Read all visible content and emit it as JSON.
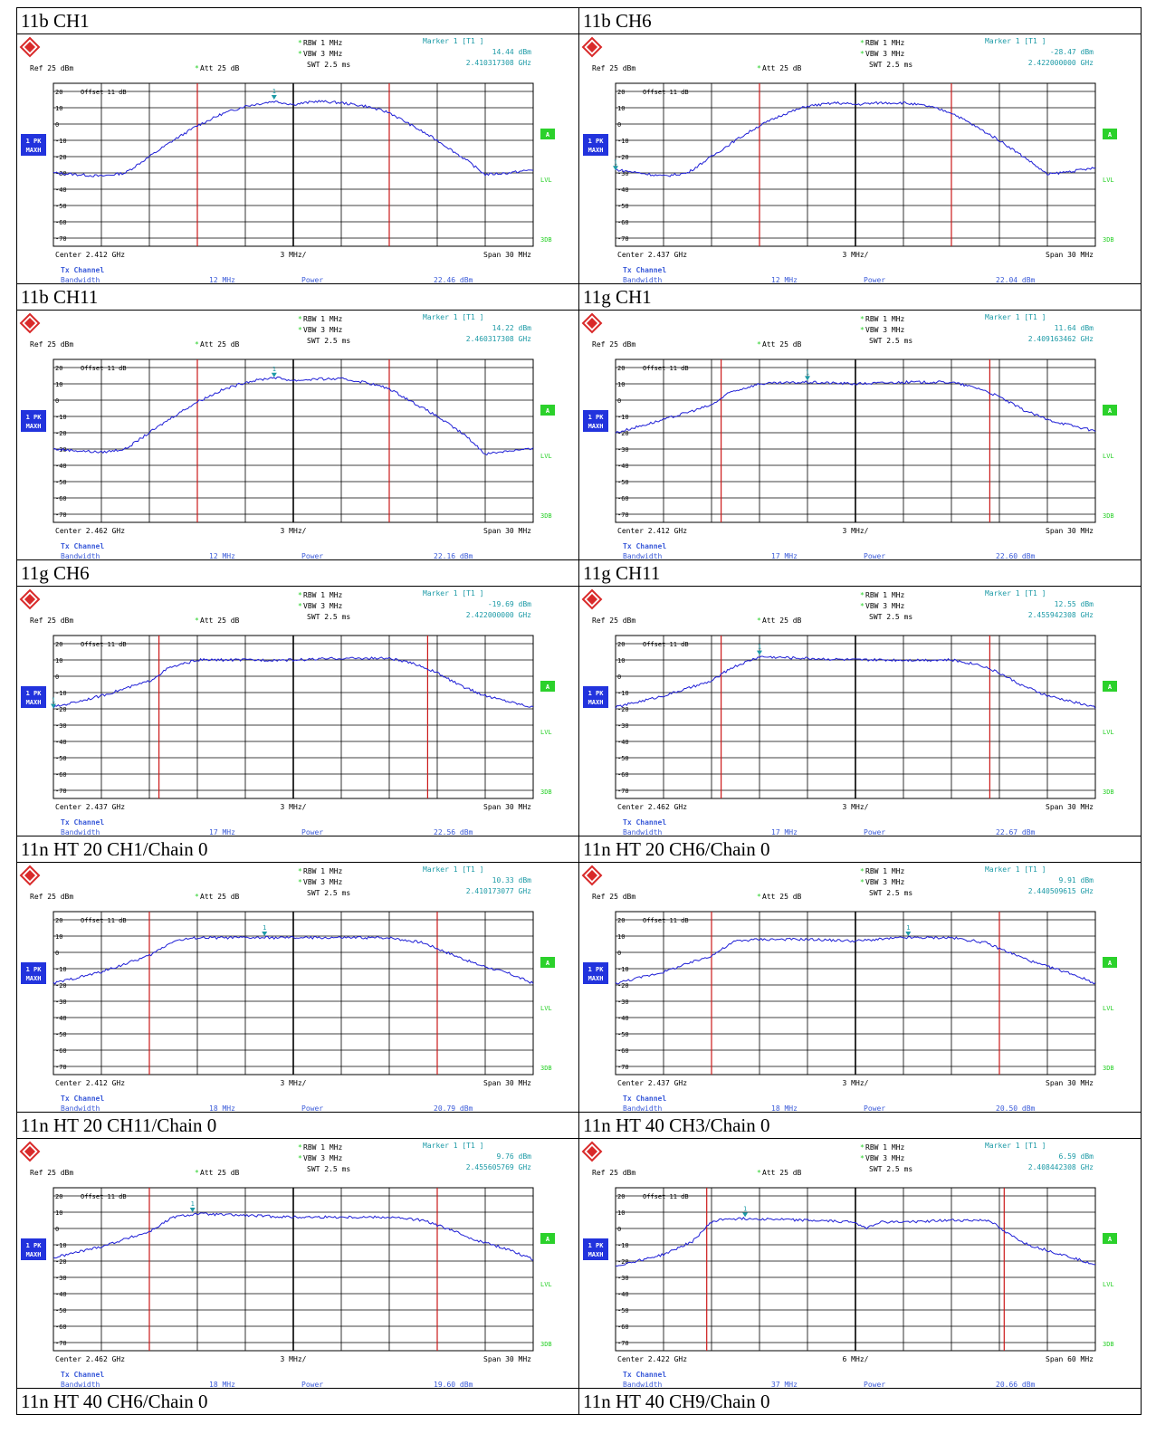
{
  "common": {
    "ref": "Ref  25 dBm",
    "att": "Att  25 dB",
    "star": "*",
    "rbw": "RBW 1 MHz",
    "vbw": "VBW 3 MHz",
    "swt": "SWT 2.5 ms",
    "marker_label": "Marker 1 [T1 ]",
    "marker_num": "1",
    "offset": "Offset  11 dB",
    "trace_l1": "1 PK",
    "trace_l2": "MAXH",
    "side_a": "A",
    "side_lvl": "LVL",
    "side_3db": "3DB",
    "tx_channel": "Tx Channel",
    "bandwidth_label": "Bandwidth",
    "power_label": "Power",
    "colors": {
      "trace": "#1f1fd6",
      "channel_line": "#cc1a1a",
      "marker": "#1c9aa6",
      "text_blue": "#3b5bd9",
      "side_green": "#2bd12b",
      "label_bg": "#2233dd"
    }
  },
  "chart_data": [
    {
      "title": "11b CH1",
      "type": "line",
      "center": "Center 2.412 GHz",
      "div": "3 MHz/",
      "span": "Span 30 MHz",
      "marker_value": "14.44 dBm",
      "marker_freq": "2.410317308 GHz",
      "bandwidth": "12 MHz",
      "power": "22.46 dBm",
      "yticks": [
        20,
        10,
        0,
        -10,
        -20,
        -30,
        -40,
        -50,
        -60,
        -70
      ],
      "ylim": [
        -75,
        25
      ],
      "xlim": [
        0,
        10
      ],
      "channel_lines": [
        3.0,
        7.0
      ],
      "marker_x": 4.6,
      "marker_y": 15,
      "series": [
        {
          "values": [
            [
              0,
              -30
            ],
            [
              1,
              -32
            ],
            [
              1.5,
              -30
            ],
            [
              2,
              -20
            ],
            [
              2.5,
              -10
            ],
            [
              3,
              -1
            ],
            [
              3.5,
              6
            ],
            [
              4,
              11
            ],
            [
              4.6,
              14
            ],
            [
              5,
              12
            ],
            [
              5.5,
              14
            ],
            [
              6,
              13
            ],
            [
              6.5,
              11
            ],
            [
              7,
              7
            ],
            [
              7.3,
              2
            ],
            [
              8,
              -10
            ],
            [
              8.6,
              -22
            ],
            [
              9,
              -31
            ],
            [
              9.5,
              -30
            ],
            [
              10,
              -28
            ]
          ]
        }
      ]
    },
    {
      "title": "11b CH6",
      "type": "line",
      "center": "Center 2.437 GHz",
      "div": "3 MHz/",
      "span": "Span 30 MHz",
      "marker_value": "-28.47 dBm",
      "marker_freq": "2.422000000 GHz",
      "bandwidth": "12 MHz",
      "power": "22.04 dBm",
      "yticks": [
        20,
        10,
        0,
        -10,
        -20,
        -30,
        -40,
        -50,
        -60,
        -70
      ],
      "ylim": [
        -75,
        25
      ],
      "xlim": [
        0,
        10
      ],
      "channel_lines": [
        3.0,
        7.0
      ],
      "marker_x": 0.0,
      "marker_y": -28.5,
      "series": [
        {
          "values": [
            [
              0,
              -28
            ],
            [
              1,
              -32
            ],
            [
              1.5,
              -30
            ],
            [
              2,
              -20
            ],
            [
              2.5,
              -10
            ],
            [
              3,
              -1
            ],
            [
              3.5,
              6
            ],
            [
              4,
              11
            ],
            [
              4.6,
              13
            ],
            [
              5,
              12
            ],
            [
              5.5,
              13
            ],
            [
              6,
              13
            ],
            [
              6.5,
              11
            ],
            [
              7,
              7
            ],
            [
              7.3,
              2
            ],
            [
              8,
              -10
            ],
            [
              8.6,
              -22
            ],
            [
              9,
              -31
            ],
            [
              9.5,
              -29
            ],
            [
              10,
              -27
            ]
          ]
        }
      ]
    },
    {
      "title": "11b CH11",
      "type": "line",
      "center": "Center 2.462 GHz",
      "div": "3 MHz/",
      "span": "Span 30 MHz",
      "marker_value": "14.22 dBm",
      "marker_freq": "2.460317308 GHz",
      "bandwidth": "12 MHz",
      "power": "22.16 dBm",
      "yticks": [
        20,
        10,
        0,
        -10,
        -20,
        -30,
        -40,
        -50,
        -60,
        -70
      ],
      "ylim": [
        -75,
        25
      ],
      "xlim": [
        0,
        10
      ],
      "channel_lines": [
        3.0,
        7.0
      ],
      "marker_x": 4.6,
      "marker_y": 14,
      "series": [
        {
          "values": [
            [
              0,
              -30
            ],
            [
              1,
              -32
            ],
            [
              1.5,
              -30
            ],
            [
              2,
              -20
            ],
            [
              2.5,
              -10
            ],
            [
              3,
              -1
            ],
            [
              3.5,
              6
            ],
            [
              4,
              11
            ],
            [
              4.6,
              14
            ],
            [
              5,
              12
            ],
            [
              5.5,
              13
            ],
            [
              6,
              13
            ],
            [
              6.5,
              11
            ],
            [
              7,
              7
            ],
            [
              7.3,
              2
            ],
            [
              8,
              -10
            ],
            [
              8.6,
              -22
            ],
            [
              9,
              -33
            ],
            [
              9.5,
              -31
            ],
            [
              10,
              -30
            ]
          ]
        }
      ]
    },
    {
      "title": "11g CH1",
      "type": "line",
      "center": "Center 2.412 GHz",
      "div": "3 MHz/",
      "span": "Span 30 MHz",
      "marker_value": "11.64 dBm",
      "marker_freq": "2.409163462 GHz",
      "bandwidth": "17 MHz",
      "power": "22.60 dBm",
      "yticks": [
        20,
        10,
        0,
        -10,
        -20,
        -30,
        -40,
        -50,
        -60,
        -70
      ],
      "ylim": [
        -75,
        25
      ],
      "xlim": [
        0,
        10
      ],
      "channel_lines": [
        2.2,
        7.8
      ],
      "marker_x": 4.0,
      "marker_y": 12,
      "series": [
        {
          "values": [
            [
              0,
              -20
            ],
            [
              1,
              -12
            ],
            [
              2,
              -3
            ],
            [
              2.4,
              5
            ],
            [
              3,
              10
            ],
            [
              4,
              11
            ],
            [
              5,
              10
            ],
            [
              6,
              11
            ],
            [
              7,
              11
            ],
            [
              7.6,
              7
            ],
            [
              8,
              2
            ],
            [
              8.5,
              -6
            ],
            [
              9,
              -12
            ],
            [
              10,
              -19
            ]
          ]
        }
      ]
    },
    {
      "title": "11g CH6",
      "type": "line",
      "center": "Center 2.437 GHz",
      "div": "3 MHz/",
      "span": "Span 30 MHz",
      "marker_value": "-19.69 dBm",
      "marker_freq": "2.422000000 GHz",
      "bandwidth": "17 MHz",
      "power": "22.56 dBm",
      "yticks": [
        20,
        10,
        0,
        -10,
        -20,
        -30,
        -40,
        -50,
        -60,
        -70
      ],
      "ylim": [
        -75,
        25
      ],
      "xlim": [
        0,
        10
      ],
      "channel_lines": [
        2.2,
        7.8
      ],
      "marker_x": 0.0,
      "marker_y": -19.7,
      "series": [
        {
          "values": [
            [
              0,
              -19
            ],
            [
              1,
              -12
            ],
            [
              2,
              -3
            ],
            [
              2.4,
              5
            ],
            [
              3,
              10
            ],
            [
              4,
              10
            ],
            [
              5,
              10
            ],
            [
              6,
              11
            ],
            [
              7,
              11
            ],
            [
              7.6,
              7
            ],
            [
              8,
              2
            ],
            [
              8.5,
              -6
            ],
            [
              9,
              -12
            ],
            [
              10,
              -19
            ]
          ]
        }
      ]
    },
    {
      "title": "11g CH11",
      "type": "line",
      "center": "Center 2.462 GHz",
      "div": "3 MHz/",
      "span": "Span 30 MHz",
      "marker_value": "12.55 dBm",
      "marker_freq": "2.455942308 GHz",
      "bandwidth": "17 MHz",
      "power": "22.67 dBm",
      "yticks": [
        20,
        10,
        0,
        -10,
        -20,
        -30,
        -40,
        -50,
        -60,
        -70
      ],
      "ylim": [
        -75,
        25
      ],
      "xlim": [
        0,
        10
      ],
      "channel_lines": [
        2.2,
        7.8
      ],
      "marker_x": 3.0,
      "marker_y": 13,
      "series": [
        {
          "values": [
            [
              0,
              -19
            ],
            [
              1,
              -12
            ],
            [
              2,
              -3
            ],
            [
              2.4,
              5
            ],
            [
              3,
              12
            ],
            [
              4,
              11
            ],
            [
              5,
              10
            ],
            [
              6,
              10
            ],
            [
              7,
              10
            ],
            [
              7.6,
              7
            ],
            [
              8,
              2
            ],
            [
              8.5,
              -6
            ],
            [
              9,
              -12
            ],
            [
              10,
              -19
            ]
          ]
        }
      ]
    },
    {
      "title": "11n HT 20 CH1/Chain 0",
      "type": "line",
      "center": "Center 2.412 GHz",
      "div": "3 MHz/",
      "span": "Span 30 MHz",
      "marker_value": "10.33 dBm",
      "marker_freq": "2.410173077 GHz",
      "bandwidth": "18 MHz",
      "power": "20.79 dBm",
      "yticks": [
        20,
        10,
        0,
        -10,
        -20,
        -30,
        -40,
        -50,
        -60,
        -70
      ],
      "ylim": [
        -75,
        25
      ],
      "xlim": [
        0,
        10
      ],
      "channel_lines": [
        2.0,
        8.0
      ],
      "marker_x": 4.4,
      "marker_y": 10,
      "series": [
        {
          "values": [
            [
              0,
              -19
            ],
            [
              1,
              -12
            ],
            [
              2,
              -2
            ],
            [
              2.5,
              7
            ],
            [
              3,
              9
            ],
            [
              4,
              9
            ],
            [
              5,
              9
            ],
            [
              6,
              9
            ],
            [
              7,
              9
            ],
            [
              7.7,
              6
            ],
            [
              8.2,
              0
            ],
            [
              8.8,
              -7
            ],
            [
              9.5,
              -13
            ],
            [
              10,
              -19
            ]
          ]
        }
      ]
    },
    {
      "title": "11n HT 20 CH6/Chain 0",
      "type": "line",
      "center": "Center 2.437 GHz",
      "div": "3 MHz/",
      "span": "Span 30 MHz",
      "marker_value": "9.91 dBm",
      "marker_freq": "2.440509615 GHz",
      "bandwidth": "18 MHz",
      "power": "20.50 dBm",
      "yticks": [
        20,
        10,
        0,
        -10,
        -20,
        -30,
        -40,
        -50,
        -60,
        -70
      ],
      "ylim": [
        -75,
        25
      ],
      "xlim": [
        0,
        10
      ],
      "channel_lines": [
        2.0,
        8.0
      ],
      "marker_x": 6.1,
      "marker_y": 10,
      "series": [
        {
          "values": [
            [
              0,
              -19
            ],
            [
              1,
              -12
            ],
            [
              2,
              -2
            ],
            [
              2.5,
              7
            ],
            [
              3,
              8
            ],
            [
              4,
              8
            ],
            [
              5,
              7
            ],
            [
              6,
              9
            ],
            [
              7,
              9
            ],
            [
              7.7,
              6
            ],
            [
              8.2,
              0
            ],
            [
              8.8,
              -7
            ],
            [
              9.5,
              -13
            ],
            [
              10,
              -19
            ]
          ]
        }
      ]
    },
    {
      "title": "11n HT 20 CH11/Chain 0",
      "type": "line",
      "center": "Center 2.462 GHz",
      "div": "3 MHz/",
      "span": "Span 30 MHz",
      "marker_value": "9.76 dBm",
      "marker_freq": "2.455605769 GHz",
      "bandwidth": "18 MHz",
      "power": "19.60 dBm",
      "yticks": [
        20,
        10,
        0,
        -10,
        -20,
        -30,
        -40,
        -50,
        -60,
        -70
      ],
      "ylim": [
        -75,
        25
      ],
      "xlim": [
        0,
        10
      ],
      "channel_lines": [
        2.0,
        8.0
      ],
      "marker_x": 2.9,
      "marker_y": 10,
      "series": [
        {
          "values": [
            [
              0,
              -18
            ],
            [
              1,
              -11
            ],
            [
              2,
              -2
            ],
            [
              2.5,
              7
            ],
            [
              3,
              9
            ],
            [
              4,
              8
            ],
            [
              5,
              7
            ],
            [
              6,
              7
            ],
            [
              7,
              7
            ],
            [
              7.7,
              5
            ],
            [
              8.2,
              0
            ],
            [
              8.8,
              -7
            ],
            [
              9.5,
              -13
            ],
            [
              10,
              -19
            ]
          ]
        }
      ]
    },
    {
      "title": "11n HT 40 CH3/Chain 0",
      "type": "line",
      "center": "Center 2.422 GHz",
      "div": "6 MHz/",
      "span": "Span 60 MHz",
      "marker_value": "6.59 dBm",
      "marker_freq": "2.408442308 GHz",
      "bandwidth": "37 MHz",
      "power": "20.66 dBm",
      "yticks": [
        20,
        10,
        0,
        -10,
        -20,
        -30,
        -40,
        -50,
        -60,
        -70
      ],
      "ylim": [
        -75,
        25
      ],
      "xlim": [
        0,
        10
      ],
      "channel_lines": [
        1.9,
        8.1
      ],
      "marker_x": 2.7,
      "marker_y": 7,
      "series": [
        {
          "values": [
            [
              0,
              -23
            ],
            [
              1,
              -16
            ],
            [
              1.6,
              -8
            ],
            [
              2,
              4
            ],
            [
              2.3,
              6
            ],
            [
              3,
              6
            ],
            [
              4,
              5
            ],
            [
              5,
              4
            ],
            [
              5.2,
              0
            ],
            [
              5.5,
              4
            ],
            [
              6,
              4
            ],
            [
              7,
              5
            ],
            [
              7.8,
              5
            ],
            [
              8.1,
              -2
            ],
            [
              8.6,
              -10
            ],
            [
              9.3,
              -16
            ],
            [
              10,
              -22
            ]
          ]
        }
      ]
    }
  ],
  "bottom_titles": [
    "11n HT 40 CH6/Chain 0",
    "11n HT 40 CH9/Chain 0"
  ]
}
